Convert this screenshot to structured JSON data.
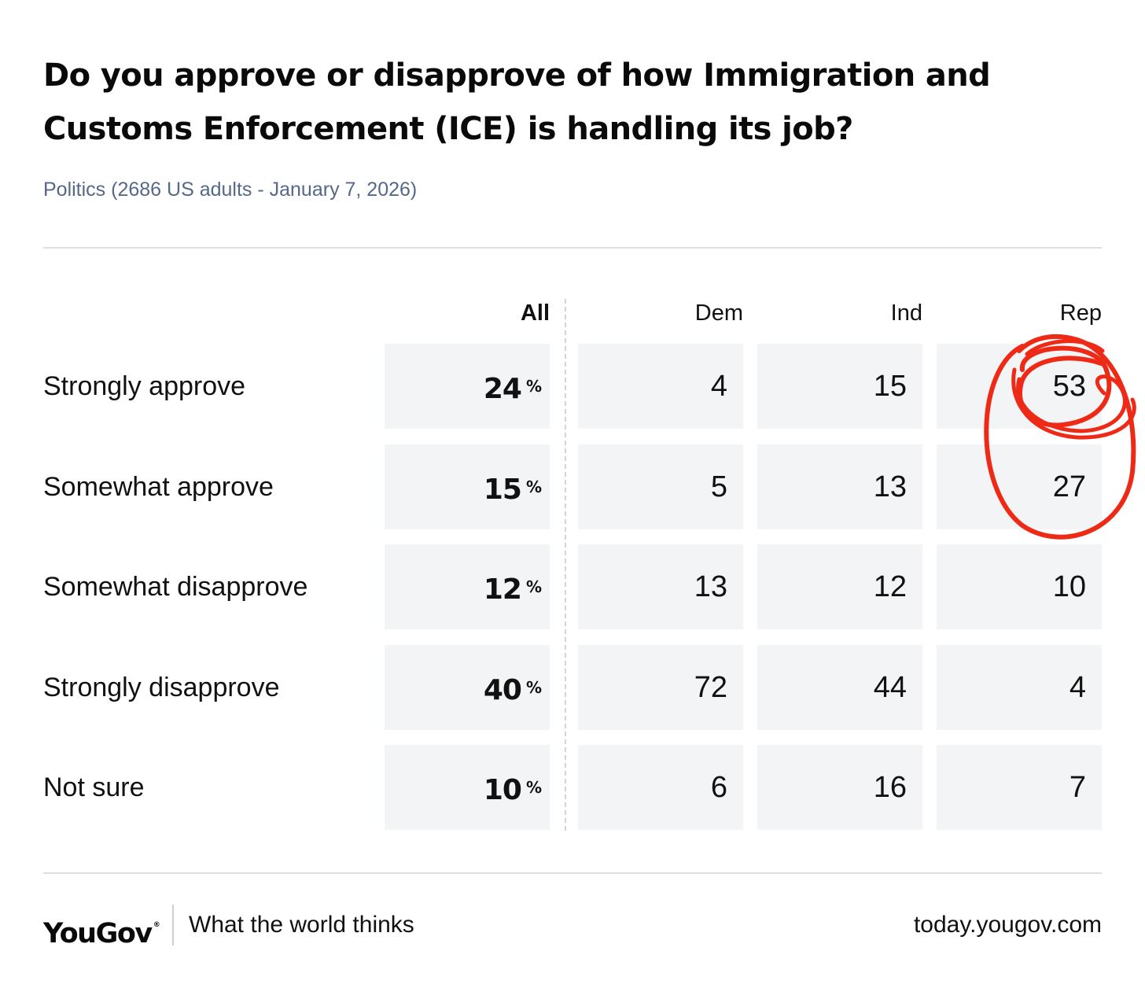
{
  "header": {
    "title": "Do you approve or disapprove of how Immigration and Customs Enforcement (ICE) is handling its job?",
    "subtitle": "Politics (2686 US adults - January 7, 2026)"
  },
  "chart_data": {
    "type": "table",
    "columns": [
      "All",
      "Dem",
      "Ind",
      "Rep"
    ],
    "percent_symbol": "%",
    "rows": [
      {
        "label": "Strongly approve",
        "values": [
          24,
          4,
          15,
          53
        ]
      },
      {
        "label": "Somewhat approve",
        "values": [
          15,
          5,
          13,
          27
        ]
      },
      {
        "label": "Somewhat disapprove",
        "values": [
          12,
          13,
          12,
          10
        ]
      },
      {
        "label": "Strongly disapprove",
        "values": [
          40,
          72,
          44,
          4
        ]
      },
      {
        "label": "Not sure",
        "values": [
          10,
          6,
          16,
          7
        ]
      }
    ],
    "annotation": {
      "type": "hand-drawn-circle",
      "color": "#ee2a16",
      "target": "Rep column, Strongly approve and Somewhat approve"
    }
  },
  "colors": {
    "cell_background": "#f3f4f5",
    "subtitle": "#56688a",
    "annotation": "#ee2a16"
  },
  "footer": {
    "brand": "YouGov",
    "brand_mark": "®",
    "tagline": "What the world thinks",
    "url": "today.yougov.com"
  }
}
